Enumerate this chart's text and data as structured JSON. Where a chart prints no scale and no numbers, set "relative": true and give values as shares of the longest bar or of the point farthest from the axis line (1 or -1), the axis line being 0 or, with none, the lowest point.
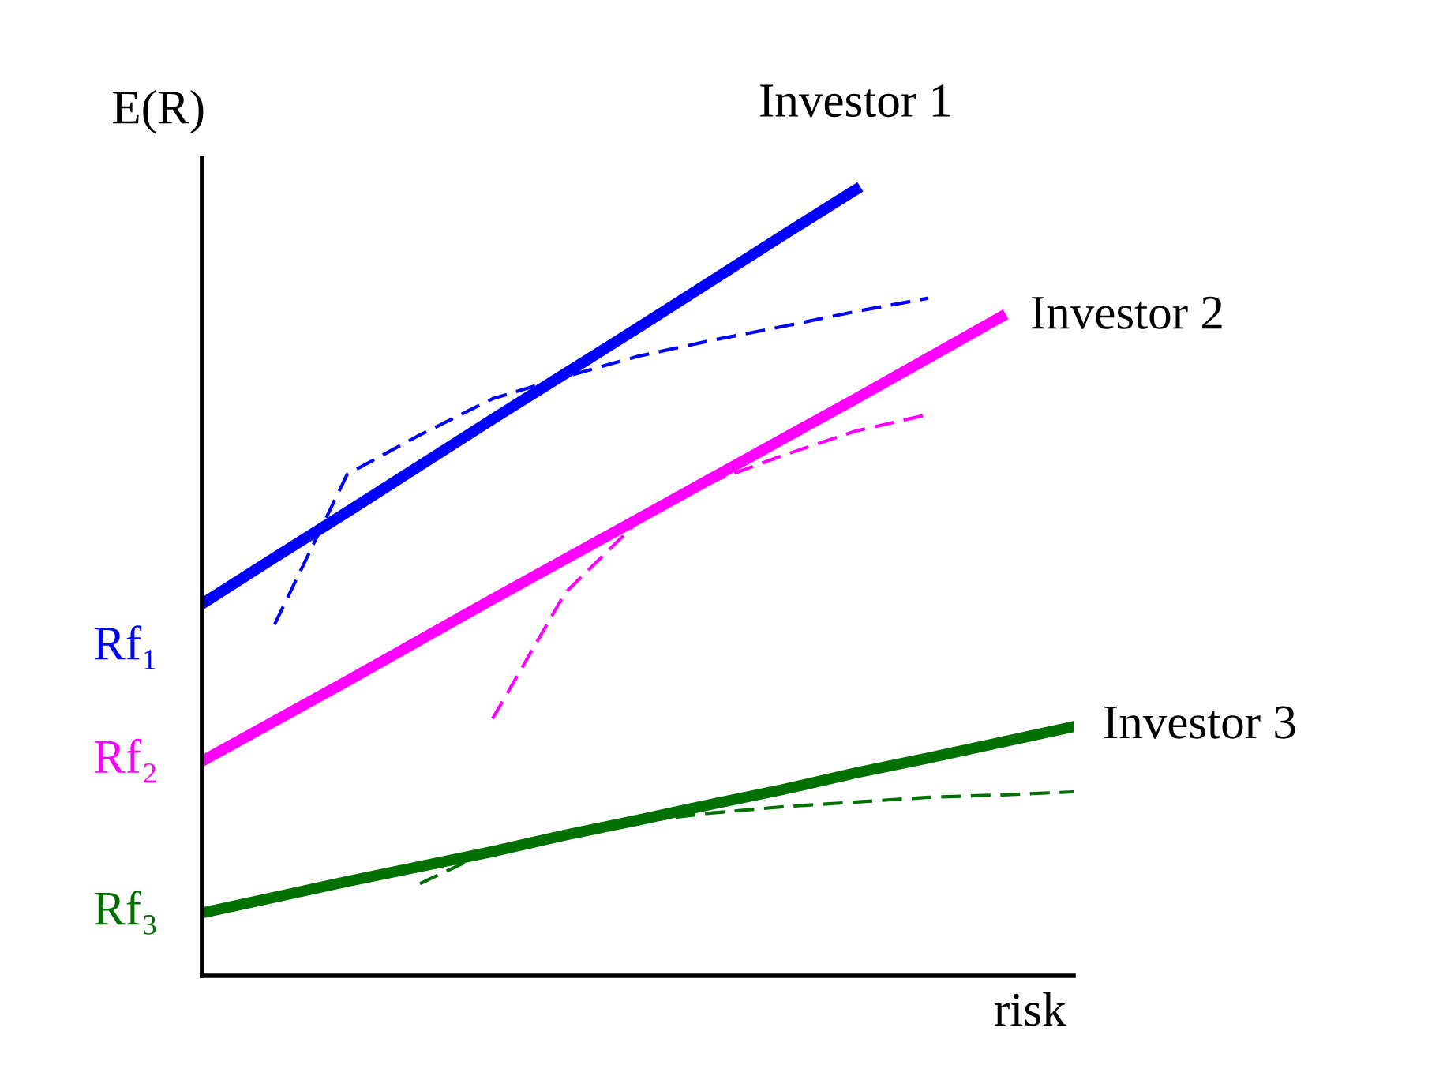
{
  "chart_data": {
    "type": "line",
    "relative": true,
    "xlabel": "risk",
    "ylabel": "E(R)",
    "legend": false,
    "categories": [
      null,
      null,
      null,
      null,
      null,
      null,
      null,
      null,
      null,
      null,
      null,
      null,
      null
    ],
    "series": [
      {
        "name": "Investor 1",
        "color": "#0000ff",
        "line_style": "solid",
        "values": [
          0.473,
          0.532,
          0.59,
          0.649,
          0.708,
          0.766,
          0.824,
          0.883,
          0.942,
          1,
          null,
          null,
          null
        ]
      },
      {
        "color": "#0000ff",
        "line_style": "dashed",
        "values": [
          null,
          0.447,
          0.638,
          0.688,
          0.734,
          0.762,
          0.788,
          0.808,
          0.826,
          0.845,
          0.862,
          null,
          null
        ]
      },
      {
        "name": "Investor 2",
        "color": "#ff00ff",
        "line_style": "solid",
        "values": [
          0.273,
          0.324,
          0.375,
          0.427,
          0.479,
          0.53,
          0.581,
          0.632,
          0.683,
          0.734,
          0.786,
          0.838,
          null
        ]
      },
      {
        "color": "#ff00ff",
        "line_style": "dashed",
        "values": [
          null,
          null,
          null,
          null,
          0.327,
          0.487,
          0.578,
          0.628,
          0.662,
          0.693,
          0.714,
          null,
          null
        ]
      },
      {
        "name": "Investor 3",
        "color": "#007000",
        "line_style": "solid",
        "values": [
          0.08,
          0.1,
          0.12,
          0.139,
          0.158,
          0.179,
          0.198,
          0.218,
          0.237,
          0.258,
          0.277,
          0.297,
          0.317
        ]
      },
      {
        "color": "#007000",
        "line_style": "dashed",
        "values": [
          null,
          null,
          null,
          0.117,
          0.161,
          0.18,
          0.196,
          0.207,
          0.215,
          0.221,
          0.227,
          0.23,
          0.234
        ]
      }
    ],
    "annotations": [
      "Rf₁",
      "Rf₂",
      "Rf₃"
    ]
  }
}
